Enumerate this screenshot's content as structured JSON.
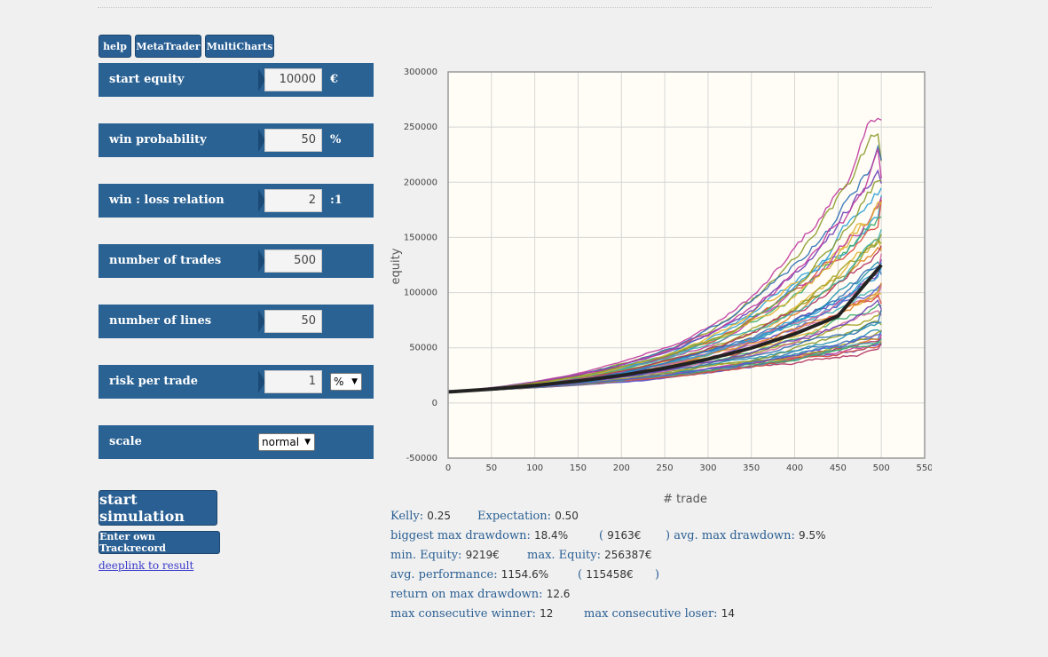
{
  "top_buttons": {
    "help": "help",
    "metatrader": "MetaTrader",
    "multicharts": "MultiCharts"
  },
  "params": {
    "start_equity": {
      "label": "start equity",
      "value": "10000",
      "unit": "€"
    },
    "win_probability": {
      "label": "win probability",
      "value": "50",
      "unit": "%"
    },
    "win_loss_relation": {
      "label": "win : loss relation",
      "value": "2",
      "unit": ":1"
    },
    "number_of_trades": {
      "label": "number of trades",
      "value": "500"
    },
    "number_of_lines": {
      "label": "number of lines",
      "value": "50"
    },
    "risk_per_trade": {
      "label": "risk per trade",
      "value": "1",
      "unit_select": "%"
    },
    "scale": {
      "label": "scale",
      "select": "normal"
    }
  },
  "actions": {
    "start_simulation": "start simulation",
    "enter_trackrecord": "Enter own Trackrecord",
    "deeplink": "deeplink to result"
  },
  "chart_data": {
    "type": "line",
    "xlabel": "# trade",
    "ylabel": "equity",
    "xlim": [
      0,
      550
    ],
    "ylim": [
      -50000,
      300000
    ],
    "x_ticks": [
      0,
      50,
      100,
      150,
      200,
      250,
      300,
      350,
      400,
      450,
      500,
      550
    ],
    "y_ticks": [
      -50000,
      0,
      50000,
      100000,
      150000,
      200000,
      250000,
      300000
    ],
    "grid": true,
    "num_lines": 50,
    "start_value": 10000,
    "final_values_range": [
      53000,
      256387
    ],
    "average_line": {
      "x": [
        0,
        50,
        100,
        150,
        200,
        250,
        300,
        350,
        400,
        450,
        500
      ],
      "y": [
        10000,
        12600,
        15800,
        19900,
        25000,
        31500,
        39600,
        49800,
        62600,
        78700,
        125000
      ],
      "color": "#222222"
    },
    "series_colors": [
      "#c0399e",
      "#e0b030",
      "#2a9fd6",
      "#2e6fb5",
      "#8a9a2a",
      "#6a3db5",
      "#d94a3a",
      "#e08020",
      "#3aaa6a",
      "#b03060",
      "#1f8fb0",
      "#a0a020",
      "#5a5ad0",
      "#d06aa0",
      "#40b0b0"
    ]
  },
  "stats": {
    "kelly_label": "Kelly:",
    "kelly": "0.25",
    "expectation_label": "Expectation:",
    "expectation": "0.50",
    "biggest_dd_label": "biggest max drawdown:",
    "biggest_dd": "18.4%",
    "biggest_dd_abs_open": "(",
    "biggest_dd_abs": "9163€",
    "avg_dd_label": ") avg. max drawdown:",
    "avg_dd": "9.5%",
    "min_equity_label": "min. Equity:",
    "min_equity": "9219€",
    "max_equity_label": "max. Equity:",
    "max_equity": "256387€",
    "avg_perf_label": "avg. performance:",
    "avg_perf": "1154.6%",
    "avg_perf_abs_open": "(",
    "avg_perf_abs": "115458€",
    "avg_perf_abs_close": ")",
    "romd_label": "return on max drawdown:",
    "romd": "12.6",
    "max_win_label": "max consecutive winner:",
    "max_win": "12",
    "max_loss_label": "max consecutive loser:",
    "max_loss": "14"
  }
}
